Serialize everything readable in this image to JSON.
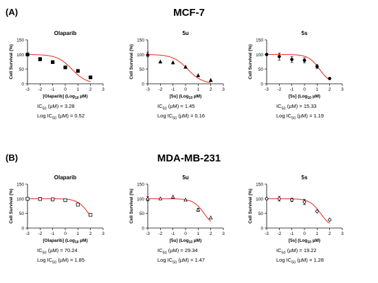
{
  "rows": [
    {
      "tag": "(A)",
      "title": "MCF-7",
      "charts": [
        {
          "title": "Olaparib",
          "xlabel_pre": "[Olaparib] (Log",
          "xlabel_sub": "10",
          "xlabel_post": " µM)",
          "ylabel": "Cell Survival (%)",
          "ic50_text": "= 3.28",
          "log_ic50_text": "= 0.52",
          "marker": "square-filled",
          "x": [
            -3,
            -2,
            -1,
            0,
            1,
            2
          ],
          "y": [
            100,
            84,
            74,
            56,
            44,
            22
          ],
          "err": [
            2,
            6,
            5,
            2,
            2,
            2
          ],
          "curve": {
            "top": 100,
            "bottom": 0,
            "log_ic50": 0.52,
            "hill": -0.75
          }
        },
        {
          "title": "5u",
          "xlabel_pre": "[5u] (Log",
          "xlabel_sub": "10",
          "xlabel_post": " µM)",
          "ylabel": "Cell Survival (%)",
          "ic50_text": "= 1.45",
          "log_ic50_text": "= 0.16",
          "marker": "triangle-filled",
          "x": [
            -3,
            -2,
            -1,
            0,
            1,
            2
          ],
          "y": [
            100,
            75,
            72,
            57,
            28,
            12
          ],
          "err": [
            8,
            2,
            2,
            2,
            2,
            2
          ],
          "curve": {
            "top": 100,
            "bottom": 0,
            "log_ic50": 0.16,
            "hill": -0.75
          }
        },
        {
          "title": "5s",
          "xlabel_pre": "[5s] (Log",
          "xlabel_sub": "10",
          "xlabel_post": " µM)",
          "ylabel": "Cell Survival (%)",
          "ic50_text": "= 15.33",
          "log_ic50_text": "= 1.19",
          "marker": "circle-filled",
          "x": [
            -3,
            -2,
            -1,
            0,
            1,
            2
          ],
          "y": [
            100,
            93,
            83,
            80,
            59,
            18
          ],
          "err": [
            3,
            12,
            10,
            9,
            7,
            2
          ],
          "curve": {
            "top": 100,
            "bottom": 0,
            "log_ic50": 1.19,
            "hill": -1.0
          }
        }
      ]
    },
    {
      "tag": "(B)",
      "title": "MDA-MB-231",
      "charts": [
        {
          "title": "Olaparib",
          "xlabel_pre": "[Olaparib] (Log",
          "xlabel_sub": "10",
          "xlabel_post": " µM)",
          "ylabel": "Cell Survival (%)",
          "ic50_text": "= 70.24",
          "log_ic50_text": "= 1.85",
          "marker": "square-open",
          "x": [
            -3,
            -2,
            -1,
            0,
            1,
            2
          ],
          "y": [
            100,
            99,
            98,
            95,
            80,
            45
          ],
          "err": [
            2,
            2,
            2,
            2,
            3,
            2
          ],
          "curve": {
            "top": 100,
            "bottom": 0,
            "log_ic50": 1.85,
            "hill": -1.0
          }
        },
        {
          "title": "5u",
          "xlabel_pre": "[5u] (Log",
          "xlabel_sub": "10",
          "xlabel_post": " µM)",
          "ylabel": "Cell Survival (%)",
          "ic50_text": "= 29.34",
          "log_ic50_text": "= 1.47",
          "marker": "triangle-open",
          "x": [
            -3,
            -2,
            -1,
            0,
            1,
            2
          ],
          "y": [
            100,
            100,
            106,
            96,
            62,
            35
          ],
          "err": [
            7,
            2,
            2,
            2,
            5,
            2
          ],
          "curve": {
            "top": 100,
            "bottom": 0,
            "log_ic50": 1.47,
            "hill": -1.0
          }
        },
        {
          "title": "5s",
          "xlabel_pre": "[5s] (Log",
          "xlabel_sub": "10",
          "xlabel_post": " µM)",
          "ylabel": "Cell Survival (%)",
          "ic50_text": "= 19.22",
          "log_ic50_text": "= 1.28",
          "marker": "diamond-open",
          "x": [
            -3,
            -2,
            -1,
            0,
            1,
            2
          ],
          "y": [
            100,
            100,
            96,
            89,
            57,
            28
          ],
          "err": [
            3,
            8,
            6,
            9,
            2,
            2
          ],
          "curve": {
            "top": 100,
            "bottom": 0,
            "log_ic50": 1.28,
            "hill": -1.0
          }
        }
      ]
    }
  ],
  "axes": {
    "xlim": [
      -3,
      3
    ],
    "ylim": [
      0,
      150
    ],
    "x_ticks": [
      -3,
      -2,
      -1,
      0,
      1,
      2,
      3
    ],
    "y_ticks": [
      0,
      50,
      100,
      150
    ]
  },
  "colors": {
    "curve": "#e8352a",
    "points": "#000000"
  }
}
